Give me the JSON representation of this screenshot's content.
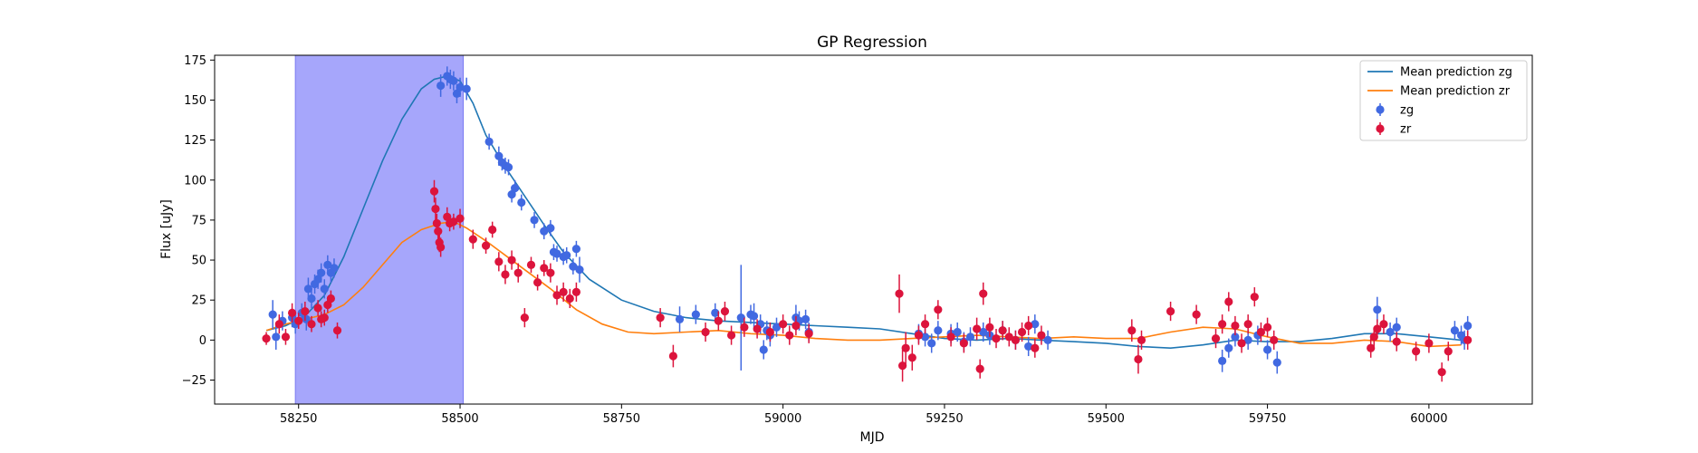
{
  "chart_data": {
    "type": "scatter",
    "title": "GP Regression",
    "xlabel": "MJD",
    "ylabel": "Flux [uJy]",
    "xlim": [
      58120,
      60160
    ],
    "ylim": [
      -40,
      178
    ],
    "xticks": [
      58250,
      58500,
      58750,
      59000,
      59250,
      59500,
      59750,
      60000
    ],
    "yticks": [
      -25,
      0,
      25,
      50,
      75,
      100,
      125,
      150,
      175
    ],
    "grid": false,
    "legend_position": "upper-right",
    "shaded_region": {
      "x": [
        58245,
        58505
      ],
      "color": "#a6a6fb"
    },
    "legend": [
      {
        "label": "Mean prediction zg",
        "kind": "line",
        "color": "#1f77b4"
      },
      {
        "label": "Mean prediction zr",
        "kind": "line",
        "color": "#ff7f0e"
      },
      {
        "label": "zg",
        "kind": "marker",
        "color": "#4169e1"
      },
      {
        "label": "zr",
        "kind": "marker",
        "color": "#dc143c"
      }
    ],
    "series": [
      {
        "name": "Mean prediction zg",
        "kind": "line",
        "color": "#1f77b4",
        "x": [
          58200,
          58230,
          58260,
          58290,
          58320,
          58350,
          58380,
          58410,
          58440,
          58460,
          58480,
          58500,
          58520,
          58540,
          58570,
          58600,
          58630,
          58660,
          58700,
          58750,
          58800,
          58850,
          58900,
          58950,
          59000,
          59050,
          59100,
          59150,
          59200,
          59250,
          59300,
          59350,
          59400,
          59450,
          59500,
          59550,
          59600,
          59650,
          59700,
          59750,
          59800,
          59850,
          59900,
          59950,
          60000,
          60050
        ],
        "y": [
          6,
          9,
          15,
          28,
          52,
          82,
          112,
          138,
          157,
          163,
          165,
          162,
          148,
          128,
          108,
          90,
          72,
          55,
          38,
          25,
          18,
          14,
          12,
          11,
          10,
          9,
          8,
          7,
          4,
          1,
          0,
          1,
          0,
          -1,
          -2,
          -4,
          -5,
          -3,
          0,
          -1,
          -1,
          1,
          4,
          4,
          2,
          0
        ]
      },
      {
        "name": "Mean prediction zr",
        "kind": "line",
        "color": "#ff7f0e",
        "x": [
          58200,
          58230,
          58260,
          58290,
          58320,
          58350,
          58380,
          58410,
          58440,
          58470,
          58490,
          58510,
          58540,
          58570,
          58600,
          58640,
          58680,
          58720,
          58760,
          58800,
          58850,
          58900,
          58950,
          59000,
          59050,
          59100,
          59150,
          59200,
          59250,
          59300,
          59350,
          59400,
          59450,
          59500,
          59550,
          59600,
          59650,
          59700,
          59750,
          59800,
          59850,
          59900,
          59950,
          60000,
          60050
        ],
        "y": [
          6,
          10,
          13,
          16,
          22,
          33,
          47,
          61,
          69,
          73,
          74,
          70,
          62,
          53,
          44,
          32,
          19,
          10,
          5,
          4,
          5,
          6,
          4,
          3,
          1,
          0,
          0,
          1,
          2,
          3,
          2,
          1,
          2,
          1,
          1,
          5,
          8,
          7,
          2,
          -2,
          -2,
          0,
          -1,
          -4,
          -3
        ]
      },
      {
        "name": "zg",
        "kind": "errorbar",
        "color": "#4169e1",
        "x": [
          58210,
          58215,
          58225,
          58240,
          58245,
          58255,
          58262,
          58265,
          58270,
          58275,
          58280,
          58285,
          58290,
          58295,
          58300,
          58305,
          58470,
          58480,
          58485,
          58490,
          58495,
          58500,
          58510,
          58545,
          58560,
          58565,
          58570,
          58575,
          58580,
          58585,
          58595,
          58615,
          58630,
          58640,
          58645,
          58650,
          58660,
          58665,
          58675,
          58680,
          58685,
          58840,
          58865,
          58895,
          58935,
          58950,
          58955,
          58965,
          58970,
          58975,
          58980,
          58990,
          59020,
          59025,
          59035,
          59040,
          59210,
          59220,
          59230,
          59240,
          59260,
          59270,
          59280,
          59290,
          59310,
          59320,
          59340,
          59360,
          59380,
          59390,
          59410,
          59680,
          59690,
          59700,
          59720,
          59735,
          59750,
          59765,
          59920,
          59940,
          59950,
          60040,
          60050,
          60055,
          60060
        ],
        "y": [
          16,
          2,
          12,
          14,
          10,
          17,
          13,
          32,
          26,
          35,
          38,
          42,
          32,
          47,
          42,
          45,
          159,
          165,
          163,
          162,
          154,
          158,
          157,
          124,
          115,
          111,
          109,
          108,
          91,
          95,
          86,
          75,
          68,
          70,
          55,
          54,
          52,
          53,
          46,
          57,
          44,
          13,
          16,
          17,
          14,
          16,
          15,
          10,
          -6,
          6,
          3,
          8,
          14,
          12,
          13,
          5,
          4,
          2,
          -2,
          6,
          4,
          5,
          -1,
          2,
          5,
          3,
          6,
          0,
          -4,
          10,
          0,
          -13,
          -5,
          2,
          0,
          3,
          -6,
          -14,
          19,
          5,
          8,
          6,
          3,
          0,
          9
        ],
        "err": [
          9,
          8,
          6,
          6,
          6,
          6,
          7,
          7,
          6,
          6,
          6,
          6,
          6,
          6,
          6,
          6,
          7,
          6,
          6,
          6,
          6,
          6,
          7,
          5,
          6,
          5,
          5,
          5,
          5,
          5,
          5,
          5,
          5,
          5,
          5,
          5,
          5,
          5,
          5,
          5,
          8,
          8,
          6,
          6,
          33,
          6,
          8,
          6,
          6,
          6,
          7,
          6,
          8,
          6,
          6,
          6,
          6,
          6,
          6,
          6,
          6,
          6,
          6,
          6,
          6,
          6,
          6,
          6,
          6,
          6,
          6,
          7,
          6,
          6,
          6,
          6,
          6,
          7,
          8,
          6,
          6,
          6,
          6,
          6,
          6
        ]
      },
      {
        "name": "zr",
        "kind": "errorbar",
        "color": "#dc143c",
        "x": [
          58200,
          58220,
          58230,
          58240,
          58250,
          58260,
          58270,
          58280,
          58285,
          58290,
          58295,
          58300,
          58310,
          58460,
          58462,
          58464,
          58466,
          58468,
          58470,
          58480,
          58484,
          58490,
          58500,
          58520,
          58540,
          58550,
          58560,
          58570,
          58580,
          58590,
          58600,
          58610,
          58620,
          58630,
          58640,
          58650,
          58660,
          58670,
          58680,
          58810,
          58830,
          58880,
          58900,
          58910,
          58920,
          58940,
          58960,
          58980,
          59000,
          59010,
          59020,
          59040,
          59180,
          59185,
          59190,
          59200,
          59210,
          59220,
          59240,
          59260,
          59280,
          59300,
          59305,
          59310,
          59320,
          59330,
          59340,
          59350,
          59360,
          59370,
          59380,
          59390,
          59400,
          59540,
          59550,
          59555,
          59600,
          59640,
          59670,
          59680,
          59690,
          59700,
          59710,
          59720,
          59730,
          59740,
          59750,
          59760,
          59910,
          59915,
          59920,
          59930,
          59950,
          59980,
          60000,
          60020,
          60030,
          60060
        ],
        "y": [
          1,
          10,
          2,
          17,
          12,
          18,
          10,
          20,
          13,
          14,
          22,
          26,
          6,
          93,
          82,
          73,
          68,
          61,
          58,
          77,
          73,
          74,
          76,
          63,
          59,
          69,
          49,
          41,
          50,
          42,
          14,
          47,
          36,
          45,
          42,
          28,
          30,
          26,
          30,
          14,
          -10,
          5,
          12,
          18,
          3,
          8,
          7,
          5,
          10,
          3,
          9,
          4,
          29,
          -16,
          -5,
          -11,
          3,
          10,
          19,
          2,
          -2,
          7,
          -18,
          29,
          8,
          1,
          6,
          2,
          0,
          5,
          9,
          -5,
          3,
          6,
          -12,
          0,
          18,
          16,
          1,
          10,
          24,
          9,
          -2,
          10,
          27,
          5,
          8,
          0,
          -5,
          2,
          7,
          10,
          -1,
          -7,
          -2,
          -20,
          -7,
          0
        ],
        "err": [
          4,
          6,
          5,
          6,
          5,
          6,
          5,
          5,
          5,
          5,
          5,
          5,
          5,
          7,
          7,
          6,
          6,
          6,
          6,
          6,
          5,
          5,
          6,
          6,
          5,
          5,
          6,
          6,
          6,
          6,
          6,
          5,
          5,
          5,
          6,
          6,
          6,
          6,
          6,
          6,
          7,
          6,
          6,
          6,
          6,
          6,
          6,
          6,
          6,
          6,
          6,
          6,
          12,
          10,
          10,
          8,
          6,
          6,
          6,
          6,
          6,
          7,
          6,
          7,
          6,
          6,
          6,
          6,
          6,
          6,
          6,
          6,
          6,
          7,
          9,
          6,
          6,
          6,
          6,
          6,
          6,
          6,
          6,
          6,
          6,
          6,
          6,
          6,
          6,
          6,
          6,
          6,
          6,
          6,
          6,
          6,
          6,
          6
        ]
      }
    ]
  }
}
